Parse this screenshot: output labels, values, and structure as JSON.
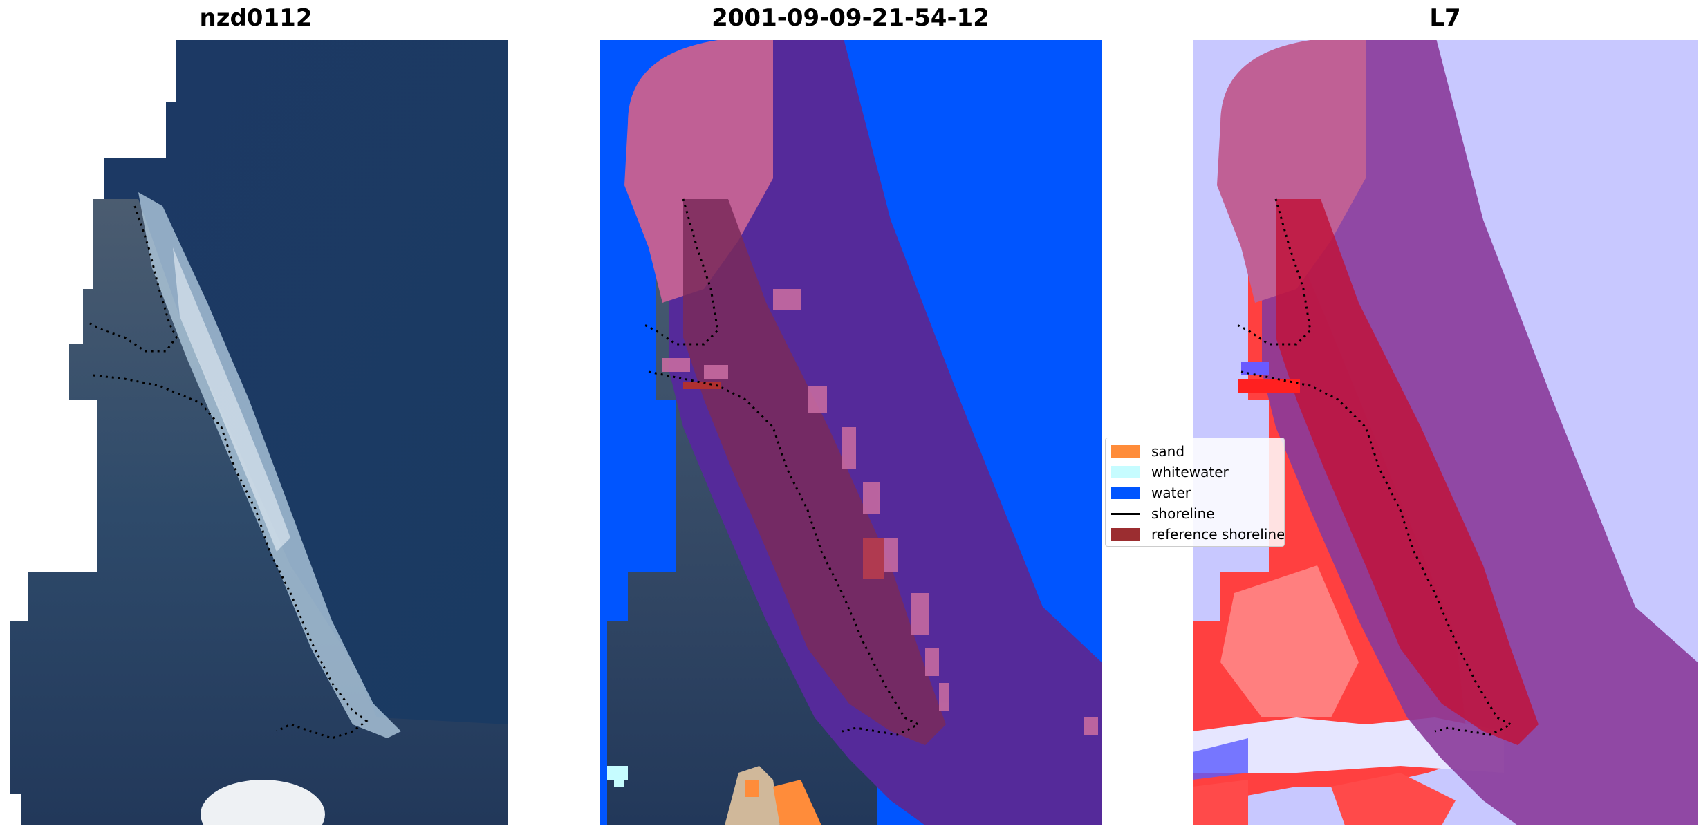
{
  "panels": [
    {
      "title": "nzd0112",
      "kind": "satellite-rgb"
    },
    {
      "title": "2001-09-09-21-54-12",
      "kind": "classification-overlay"
    },
    {
      "title": "L7",
      "kind": "index-overlay"
    }
  ],
  "legend": {
    "items": [
      {
        "label": "sand",
        "color": "#ff8c3a",
        "type": "swatch"
      },
      {
        "label": "whitewater",
        "color": "#c6fcff",
        "type": "swatch"
      },
      {
        "label": "water",
        "color": "#0055ff",
        "type": "swatch"
      },
      {
        "label": "shoreline",
        "color": "#000000",
        "type": "line"
      },
      {
        "label": "reference shoreline",
        "color": "#9b2d30",
        "type": "swatch"
      }
    ]
  },
  "colors": {
    "ocean": "#1e3a66",
    "land": "#2a4468",
    "water_class": "#0055ff",
    "buffer": "#552a9a",
    "reference_area": "#c06095",
    "land_red": "#ff3c3c",
    "water_index": "#c8c8ff"
  }
}
